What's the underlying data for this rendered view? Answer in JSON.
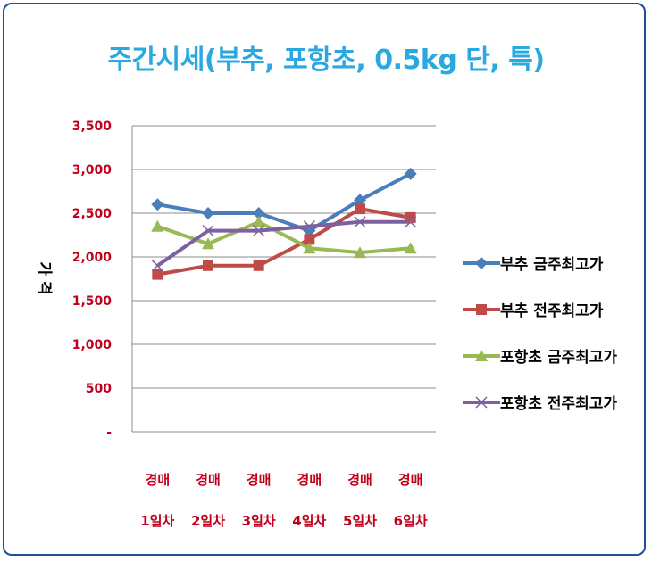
{
  "chart_data": {
    "type": "line",
    "title": "주간시세(부추, 포항초, 0.5kg 단, 특)",
    "ylabel": "가 격",
    "xlabel": "",
    "ylim": [
      0,
      3500
    ],
    "ytick_labels": [
      "-",
      "500",
      "1,000",
      "1,500",
      "2,000",
      "2,500",
      "3,000",
      "3,500"
    ],
    "categories": [
      [
        "경매",
        "1일차"
      ],
      [
        "경매",
        "2일차"
      ],
      [
        "경매",
        "3일차"
      ],
      [
        "경매",
        "4일차"
      ],
      [
        "경매",
        "5일차"
      ],
      [
        "경매",
        "6일차"
      ]
    ],
    "grid": true,
    "legend_position": "right",
    "series": [
      {
        "name": "부추 금주최고가",
        "color": "#4a7ebb",
        "marker": "diamond",
        "values": [
          2600,
          2500,
          2500,
          2300,
          2650,
          2950
        ]
      },
      {
        "name": "부추 전주최고가",
        "color": "#be4b48",
        "marker": "square",
        "values": [
          1800,
          1900,
          1900,
          2200,
          2550,
          2450
        ]
      },
      {
        "name": "포항초 금주최고가",
        "color": "#98b954",
        "marker": "triangle",
        "values": [
          2350,
          2150,
          2400,
          2100,
          2050,
          2100
        ]
      },
      {
        "name": "포항초 전주최고가",
        "color": "#7d60a0",
        "marker": "x",
        "values": [
          1900,
          2300,
          2300,
          2350,
          2400,
          2400
        ]
      }
    ]
  }
}
